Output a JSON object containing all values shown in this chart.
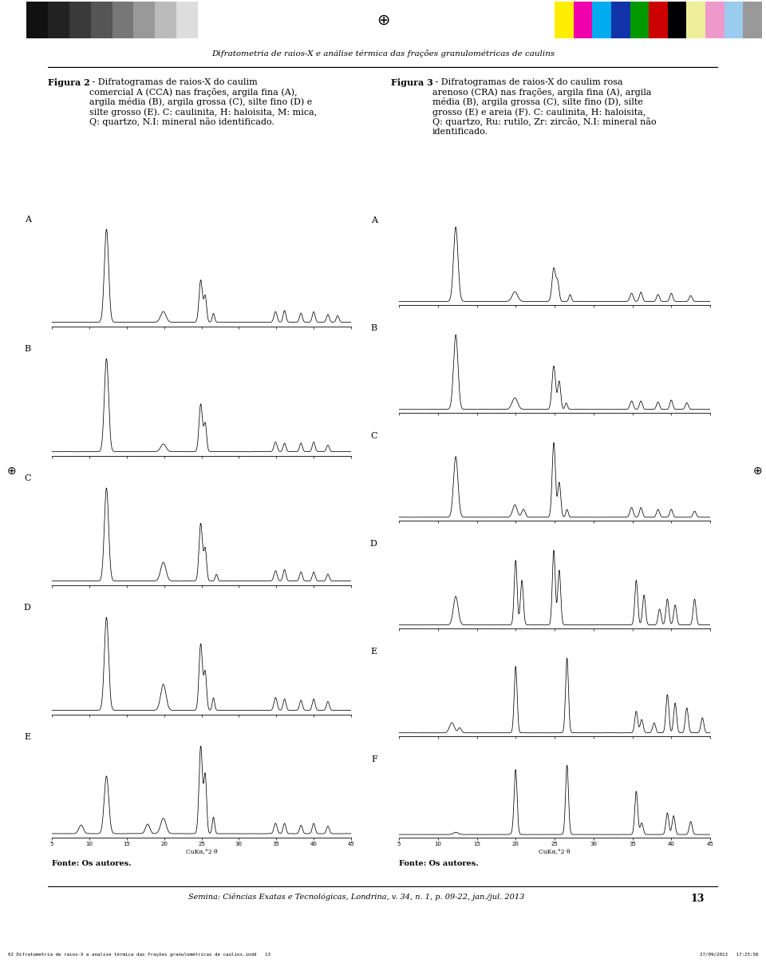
{
  "page_title": "Difratometria de raios-X e análise térmica das frações granulométricas de caulins",
  "fig2_label": "Figura 2",
  "fig2_caption_rest": " - Difratogramas de raios-X do caulim\ncomercial A (CCA) nas frações, argila fina (A),\nargila média (B), argila grossa (C), silte fino (D) e\nsilte grosso (E). C: caulinita, H: haloisita, M: mica,\nQ: quartzo, N.I: mineral não identificado.",
  "fig3_label": "Figura 3",
  "fig3_caption_rest": " - Difratogramas de raios-X do caulim rosa\narenoso (CRA) nas frações, argila fina (A), argila\nmédia (B), argila grossa (C), silte fino (D), silte\ngrosso (E) e areia (F). C: caulinita, H: haloisita,\nQ: quartzo, Ru: rutilo, Zr: zircão, N.I: mineral não\nidentificado.",
  "fonte": "Fonte: Os autores.",
  "footer": "Semina: Ciências Exatas e Tecnológicas, Londrina, v. 34, n. 1, p. 09-22, jan./jul. 2013",
  "page_number": "13",
  "xlabel": "CuKα,°2 θ",
  "gray_colors": [
    "#111111",
    "#222222",
    "#3a3a3a",
    "#555555",
    "#777777",
    "#999999",
    "#bbbbbb",
    "#dddddd",
    "#ffffff"
  ],
  "color_strip": [
    "#ffee00",
    "#ee00aa",
    "#00aaee",
    "#1133aa",
    "#009900",
    "#cc0000",
    "#000000",
    "#eeee99",
    "#ee99cc",
    "#99ccee",
    "#999999"
  ],
  "meta_left": "02 Difratometria de raios-X e analise térmica das frações granulométricas de caulins.indd   13",
  "meta_right": "27/09/2013   17:25:56"
}
